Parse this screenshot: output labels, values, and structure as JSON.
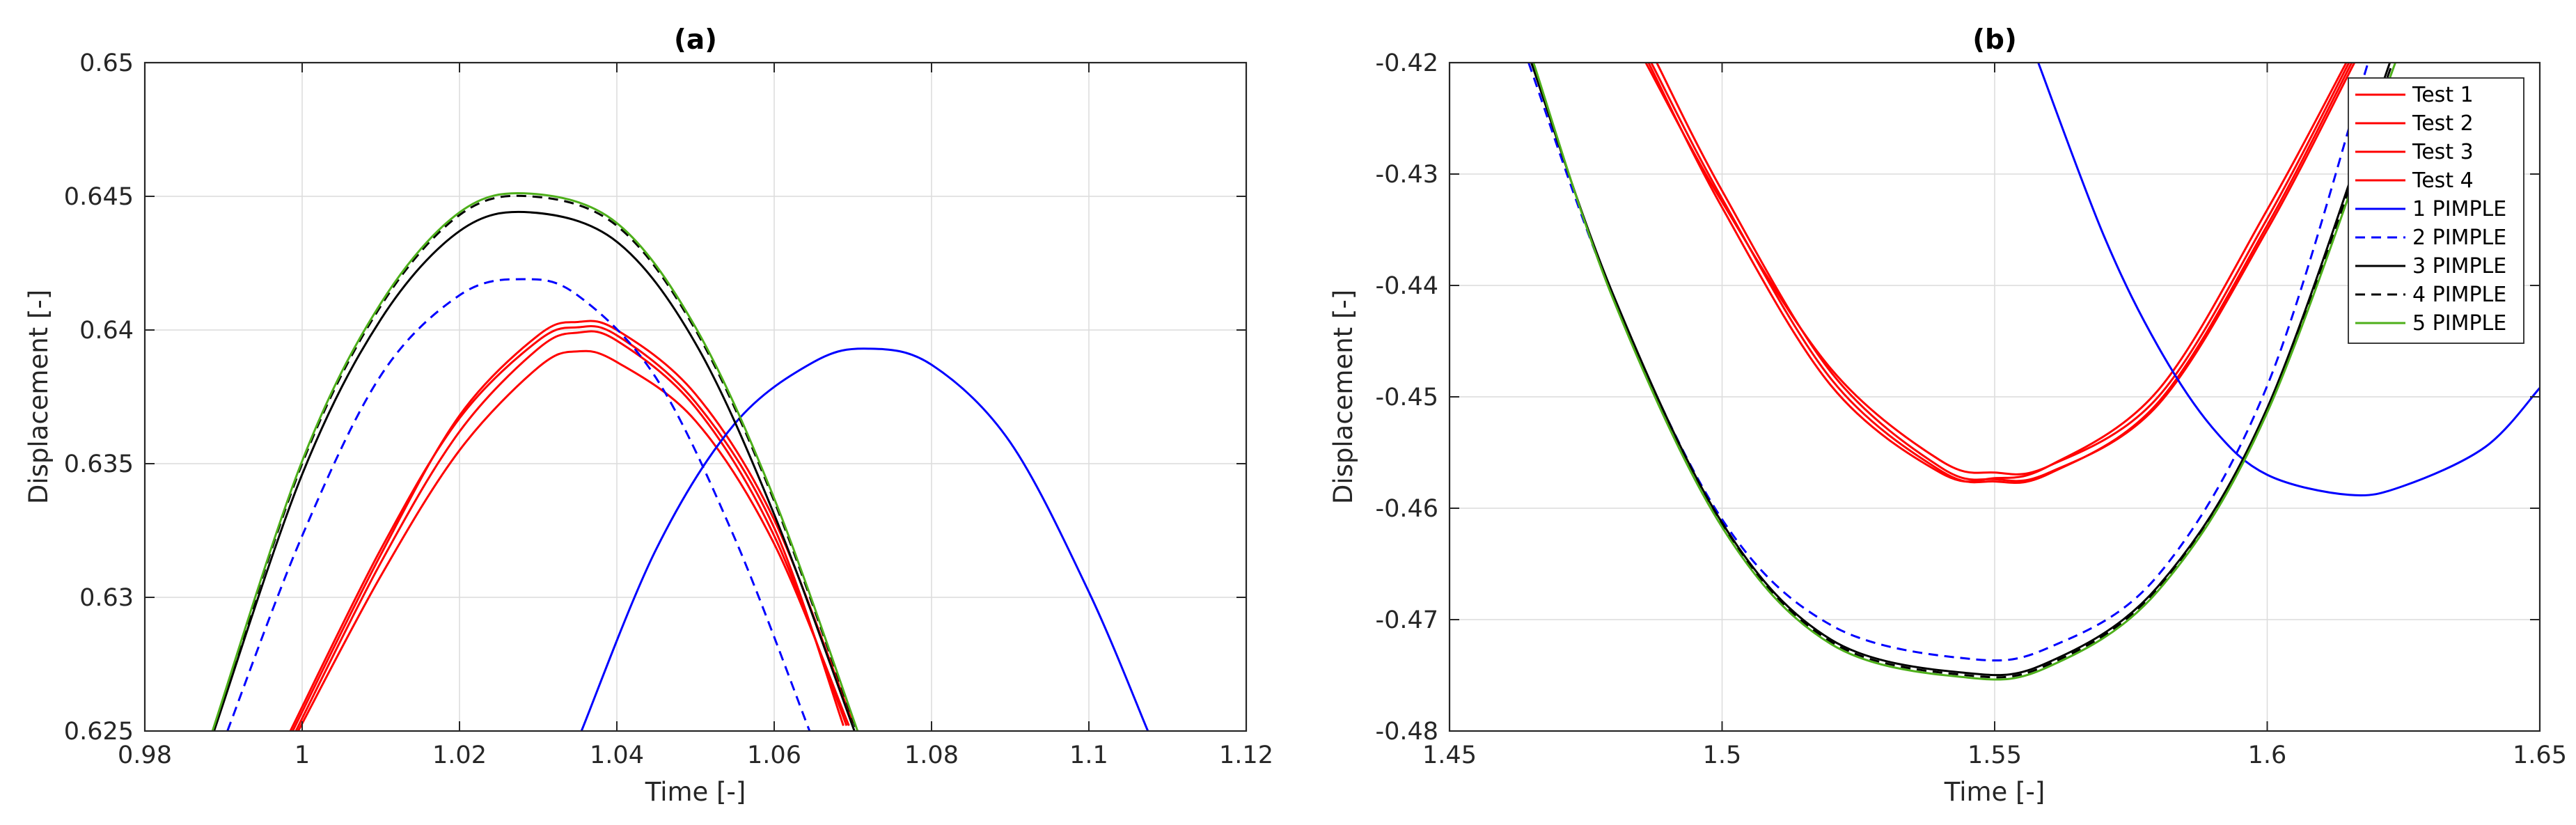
{
  "chart_data": [
    {
      "type": "line",
      "title": "(a)",
      "xlabel": "Time [-]",
      "ylabel": "Displacement [-]",
      "xlim": [
        0.98,
        1.12
      ],
      "ylim": [
        0.625,
        0.65
      ],
      "xticks": [
        0.98,
        1,
        1.02,
        1.04,
        1.06,
        1.08,
        1.1,
        1.12
      ],
      "xtick_labels": [
        "0.98",
        "1",
        "1.02",
        "1.04",
        "1.06",
        "1.08",
        "1.1",
        "1.12"
      ],
      "yticks": [
        0.625,
        0.63,
        0.635,
        0.64,
        0.645,
        0.65
      ],
      "ytick_labels": [
        "0.625",
        "0.63",
        "0.635",
        "0.64",
        "0.645",
        "0.65"
      ],
      "grid": true,
      "series": [
        {
          "name": "Test 1",
          "color": "#ff0000",
          "dash": "solid",
          "x": [
            0.9995,
            1.01,
            1.02,
            1.03,
            1.035,
            1.04,
            1.05,
            1.06,
            1.0695
          ],
          "y": [
            0.625,
            0.6308,
            0.6355,
            0.6386,
            0.6392,
            0.6388,
            0.6366,
            0.632,
            0.6252
          ]
        },
        {
          "name": "Test 2",
          "color": "#ff0000",
          "dash": "solid",
          "x": [
            0.9985,
            1.01,
            1.02,
            1.03,
            1.035,
            1.04,
            1.05,
            1.06,
            1.0688
          ],
          "y": [
            0.625,
            0.6318,
            0.6367,
            0.6396,
            0.6401,
            0.6398,
            0.6373,
            0.6326,
            0.6252
          ]
        },
        {
          "name": "Test 3",
          "color": "#ff0000",
          "dash": "solid",
          "x": [
            0.9992,
            1.01,
            1.02,
            1.03,
            1.035,
            1.04,
            1.05,
            1.06,
            1.0692
          ],
          "y": [
            0.625,
            0.6313,
            0.6362,
            0.6393,
            0.6399,
            0.6396,
            0.6371,
            0.6323,
            0.6252
          ]
        },
        {
          "name": "Test 4",
          "color": "#ff0000",
          "dash": "solid",
          "x": [
            0.9988,
            1.01,
            1.02,
            1.03,
            1.035,
            1.04,
            1.05,
            1.06,
            1.07
          ],
          "y": [
            0.625,
            0.6316,
            0.6368,
            0.6398,
            0.6403,
            0.64,
            0.6376,
            0.6329,
            0.6253
          ]
        },
        {
          "name": "1 PIMPLE",
          "color": "#0000ff",
          "dash": "solid",
          "x": [
            1.0355,
            1.045,
            1.055,
            1.065,
            1.072,
            1.08,
            1.09,
            1.1,
            1.1075
          ],
          "y": [
            0.625,
            0.6318,
            0.6365,
            0.6388,
            0.6393,
            0.6387,
            0.6358,
            0.6302,
            0.625
          ]
        },
        {
          "name": "2 PIMPLE",
          "color": "#0000ff",
          "dash": "dashed",
          "x": [
            0.9905,
            1.0,
            1.01,
            1.02,
            1.028,
            1.035,
            1.045,
            1.055,
            1.0645
          ],
          "y": [
            0.625,
            0.6323,
            0.6383,
            0.6413,
            0.6419,
            0.6413,
            0.6382,
            0.6322,
            0.625
          ]
        },
        {
          "name": "3 PIMPLE",
          "color": "#000000",
          "dash": "solid",
          "x": [
            0.9888,
            1.0,
            1.01,
            1.02,
            1.029,
            1.04,
            1.05,
            1.06,
            1.0702
          ],
          "y": [
            0.625,
            0.6346,
            0.6404,
            0.6437,
            0.6444,
            0.6433,
            0.6395,
            0.6331,
            0.625
          ]
        },
        {
          "name": "4 PIMPLE",
          "color": "#000000",
          "dash": "dashed",
          "x": [
            0.9887,
            1.0,
            1.01,
            1.02,
            1.029,
            1.04,
            1.05,
            1.06,
            1.0705
          ],
          "y": [
            0.625,
            0.635,
            0.6409,
            0.6443,
            0.645,
            0.6439,
            0.64,
            0.6336,
            0.625
          ]
        },
        {
          "name": "5 PIMPLE",
          "color": "#4daf1a",
          "dash": "solid",
          "x": [
            0.9886,
            1.0,
            1.01,
            1.02,
            1.029,
            1.04,
            1.05,
            1.06,
            1.0706
          ],
          "y": [
            0.625,
            0.6351,
            0.641,
            0.6444,
            0.6451,
            0.644,
            0.6401,
            0.6337,
            0.625
          ]
        }
      ]
    },
    {
      "type": "line",
      "title": "(b)",
      "xlabel": "Time [-]",
      "ylabel": "Displacement [-]",
      "xlim": [
        1.45,
        1.65
      ],
      "ylim": [
        -0.48,
        -0.42
      ],
      "xticks": [
        1.45,
        1.5,
        1.55,
        1.6,
        1.65
      ],
      "xtick_labels": [
        "1.45",
        "1.5",
        "1.55",
        "1.6",
        "1.65"
      ],
      "yticks": [
        -0.48,
        -0.47,
        -0.46,
        -0.45,
        -0.44,
        -0.43,
        -0.42
      ],
      "ytick_labels": [
        "-0.48",
        "-0.47",
        "-0.46",
        "-0.45",
        "-0.44",
        "-0.43",
        "-0.42"
      ],
      "grid": true,
      "legend": "top-right",
      "series": [
        {
          "name": "Test 1",
          "color": "#ff0000",
          "dash": "solid",
          "x": [
            1.486,
            1.5,
            1.52,
            1.54,
            1.55,
            1.56,
            1.58,
            1.6,
            1.615
          ],
          "y": [
            -0.42,
            -0.4325,
            -0.4475,
            -0.4557,
            -0.4568,
            -0.4562,
            -0.45,
            -0.434,
            -0.42
          ]
        },
        {
          "name": "Test 2",
          "color": "#ff0000",
          "dash": "solid",
          "x": [
            1.488,
            1.5,
            1.52,
            1.54,
            1.55,
            1.56,
            1.58,
            1.6,
            1.616
          ],
          "y": [
            -0.42,
            -0.4315,
            -0.4478,
            -0.4563,
            -0.4574,
            -0.4568,
            -0.4507,
            -0.435,
            -0.42
          ]
        },
        {
          "name": "Test 3",
          "color": "#ff0000",
          "dash": "solid",
          "x": [
            1.487,
            1.5,
            1.52,
            1.54,
            1.55,
            1.56,
            1.58,
            1.6,
            1.6155
          ],
          "y": [
            -0.42,
            -0.4322,
            -0.4484,
            -0.4566,
            -0.4576,
            -0.4569,
            -0.4505,
            -0.4346,
            -0.42
          ]
        },
        {
          "name": "Test 4",
          "color": "#ff0000",
          "dash": "solid",
          "x": [
            1.4865,
            1.5,
            1.52,
            1.54,
            1.55,
            1.56,
            1.58,
            1.6,
            1.6145
          ],
          "y": [
            -0.42,
            -0.433,
            -0.449,
            -0.4568,
            -0.4573,
            -0.4562,
            -0.4494,
            -0.4332,
            -0.42
          ]
        },
        {
          "name": "1 PIMPLE",
          "color": "#0000ff",
          "dash": "solid",
          "x": [
            1.558,
            1.57,
            1.58,
            1.59,
            1.6,
            1.615,
            1.625,
            1.64,
            1.65
          ],
          "y": [
            -0.42,
            -0.4355,
            -0.4455,
            -0.4528,
            -0.457,
            -0.4588,
            -0.458,
            -0.4545,
            -0.4492
          ]
        },
        {
          "name": "2 PIMPLE",
          "color": "#0000ff",
          "dash": "dashed",
          "x": [
            1.4645,
            1.48,
            1.5,
            1.52,
            1.545,
            1.56,
            1.58,
            1.6,
            1.6185
          ],
          "y": [
            -0.42,
            -0.441,
            -0.461,
            -0.4705,
            -0.4735,
            -0.4725,
            -0.466,
            -0.449,
            -0.42
          ]
        },
        {
          "name": "3 PIMPLE",
          "color": "#000000",
          "dash": "solid",
          "x": [
            1.465,
            1.48,
            1.5,
            1.52,
            1.545,
            1.56,
            1.58,
            1.6,
            1.6225
          ],
          "y": [
            -0.42,
            -0.4408,
            -0.4613,
            -0.4718,
            -0.4748,
            -0.4738,
            -0.467,
            -0.451,
            -0.42
          ]
        },
        {
          "name": "4 PIMPLE",
          "color": "#000000",
          "dash": "dashed",
          "x": [
            1.4652,
            1.48,
            1.5,
            1.52,
            1.545,
            1.56,
            1.58,
            1.6,
            1.623
          ],
          "y": [
            -0.42,
            -0.441,
            -0.4615,
            -0.472,
            -0.475,
            -0.474,
            -0.4672,
            -0.4512,
            -0.42
          ]
        },
        {
          "name": "5 PIMPLE",
          "color": "#4daf1a",
          "dash": "solid",
          "x": [
            1.4654,
            1.48,
            1.5,
            1.52,
            1.545,
            1.56,
            1.58,
            1.6,
            1.6235
          ],
          "y": [
            -0.42,
            -0.4412,
            -0.4617,
            -0.4722,
            -0.4752,
            -0.4742,
            -0.4674,
            -0.4514,
            -0.42
          ]
        }
      ]
    }
  ]
}
